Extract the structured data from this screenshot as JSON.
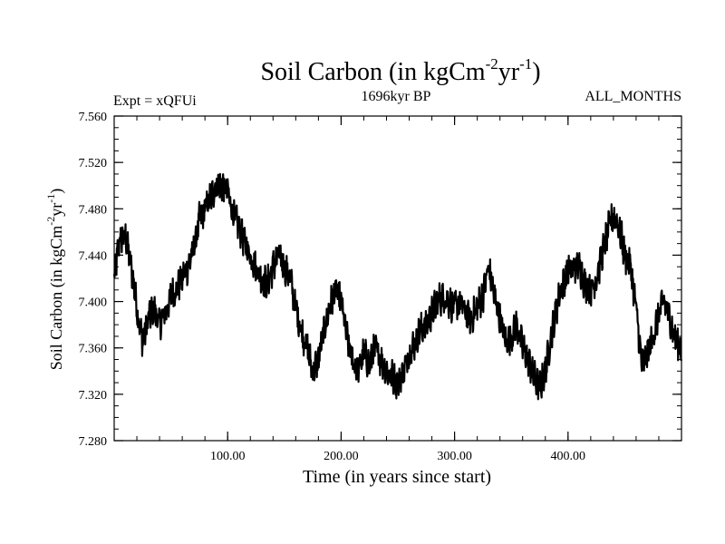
{
  "chart_data": {
    "type": "line",
    "title": {
      "prefix": "Soil Carbon (in kgCm",
      "sup1": "-2",
      "mid": "yr",
      "sup2": "-1",
      "suffix": ")"
    },
    "ylabel": {
      "prefix": "Soil Carbon (in kgCm",
      "sup1": "-2",
      "mid": "yr",
      "sup2": "-1",
      "suffix": ")"
    },
    "left_annotation": "Expt = xQFUi",
    "center_annotation": "1696kyr BP",
    "right_annotation": "ALL_MONTHS",
    "xlabel": "Time (in years since start)",
    "xlim": [
      0,
      500
    ],
    "ylim": [
      7.28,
      7.56
    ],
    "xticks": [
      100,
      200,
      300,
      400
    ],
    "xtick_labels": [
      "100.00",
      "200.00",
      "300.00",
      "400.00"
    ],
    "yticks": [
      7.28,
      7.32,
      7.36,
      7.4,
      7.44,
      7.48,
      7.52,
      7.56
    ],
    "ytick_labels": [
      "7.280",
      "7.320",
      "7.360",
      "7.400",
      "7.440",
      "7.480",
      "7.520",
      "7.560"
    ],
    "series": [
      {
        "name": "Soil Carbon",
        "color": "#000000",
        "x": [
          0,
          5,
          10,
          15,
          20,
          25,
          30,
          35,
          40,
          45,
          50,
          55,
          60,
          65,
          70,
          75,
          80,
          85,
          90,
          95,
          100,
          105,
          110,
          115,
          120,
          125,
          130,
          135,
          140,
          145,
          150,
          155,
          160,
          165,
          170,
          175,
          180,
          185,
          190,
          195,
          200,
          205,
          210,
          215,
          220,
          225,
          230,
          235,
          240,
          245,
          250,
          255,
          260,
          265,
          270,
          275,
          280,
          285,
          290,
          295,
          300,
          305,
          310,
          315,
          320,
          325,
          330,
          335,
          340,
          345,
          350,
          355,
          360,
          365,
          370,
          375,
          380,
          385,
          390,
          395,
          400,
          405,
          410,
          415,
          420,
          425,
          430,
          435,
          440,
          445,
          450,
          455,
          460,
          465,
          470,
          475,
          480,
          485,
          490,
          495,
          500
        ],
        "values": [
          7.42,
          7.455,
          7.455,
          7.43,
          7.395,
          7.365,
          7.385,
          7.395,
          7.38,
          7.39,
          7.405,
          7.41,
          7.42,
          7.43,
          7.445,
          7.47,
          7.48,
          7.49,
          7.5,
          7.5,
          7.495,
          7.475,
          7.465,
          7.45,
          7.44,
          7.43,
          7.42,
          7.415,
          7.43,
          7.44,
          7.43,
          7.42,
          7.395,
          7.375,
          7.36,
          7.34,
          7.35,
          7.375,
          7.395,
          7.41,
          7.4,
          7.37,
          7.35,
          7.34,
          7.355,
          7.345,
          7.36,
          7.35,
          7.34,
          7.335,
          7.33,
          7.34,
          7.355,
          7.365,
          7.375,
          7.38,
          7.39,
          7.4,
          7.405,
          7.4,
          7.395,
          7.4,
          7.39,
          7.385,
          7.395,
          7.405,
          7.43,
          7.405,
          7.385,
          7.365,
          7.37,
          7.38,
          7.36,
          7.35,
          7.335,
          7.325,
          7.34,
          7.37,
          7.395,
          7.415,
          7.425,
          7.43,
          7.43,
          7.415,
          7.41,
          7.42,
          7.44,
          7.46,
          7.475,
          7.465,
          7.44,
          7.43,
          7.395,
          7.345,
          7.355,
          7.37,
          7.39,
          7.4,
          7.385,
          7.365,
          7.36
        ],
        "noise_amplitude": 0.012
      }
    ]
  }
}
